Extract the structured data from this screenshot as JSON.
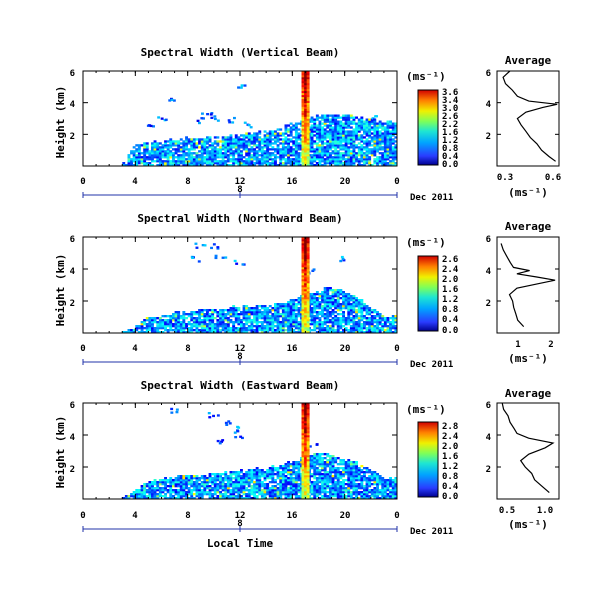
{
  "figure": {
    "xlabel": "Local Time"
  },
  "chart_data": [
    {
      "type": "heatmap",
      "title": "Spectral Width (Vertical Beam)",
      "ylabel": "Height (km)",
      "x_ticks": [
        "0",
        "4",
        "8",
        "12",
        "16",
        "20",
        "0"
      ],
      "y_ticks": [
        "6",
        "4",
        "2"
      ],
      "date_tick": "8",
      "date_label": "Dec 2011",
      "colorbar": {
        "unit": "(ms⁻¹)",
        "ticks": [
          "3.6",
          "3.4",
          "3.0",
          "2.6",
          "2.2",
          "1.6",
          "1.2",
          "0.8",
          "0.4",
          "0.0"
        ]
      },
      "xlim": [
        0,
        24
      ],
      "ylim": [
        0,
        6
      ],
      "cloud_top_km": [
        0,
        0,
        0,
        0,
        1.3,
        1.4,
        1.5,
        1.6,
        1.7,
        1.7,
        1.8,
        1.8,
        1.9,
        2.0,
        2.1,
        2.3,
        2.6,
        2.9,
        3.1,
        3.2,
        3.2,
        3.0,
        2.9,
        2.8
      ],
      "scattered_cells": [
        [
          7,
          4.3
        ],
        [
          10,
          3.0
        ],
        [
          9.5,
          3.3
        ],
        [
          11.5,
          2.9
        ],
        [
          12.5,
          2.6
        ],
        [
          9,
          2.9
        ],
        [
          5,
          2.6
        ],
        [
          12,
          5.0
        ],
        [
          6,
          3.0
        ],
        [
          22.5,
          3.0
        ]
      ],
      "spike_hour": 17.0,
      "average": {
        "title": "Average",
        "xlabel": "(ms⁻¹)",
        "x_ticks": [
          "0.3",
          "0.6"
        ],
        "y_ticks": [
          "6",
          "4",
          "2"
        ],
        "xlim": [
          0.3,
          0.6
        ],
        "ylim": [
          0,
          6
        ],
        "height_km": [
          0.3,
          0.6,
          1.0,
          1.4,
          1.8,
          2.2,
          2.6,
          3.0,
          3.4,
          3.7,
          3.9,
          4.1,
          4.4,
          4.8,
          5.2,
          5.6,
          6.0
        ],
        "width": [
          0.58,
          0.55,
          0.52,
          0.49,
          0.46,
          0.44,
          0.42,
          0.4,
          0.44,
          0.52,
          0.59,
          0.45,
          0.4,
          0.37,
          0.34,
          0.33,
          0.36
        ]
      }
    },
    {
      "type": "heatmap",
      "title": "Spectral Width (Northward Beam)",
      "ylabel": "Height (km)",
      "x_ticks": [
        "0",
        "4",
        "8",
        "12",
        "16",
        "20",
        "0"
      ],
      "y_ticks": [
        "6",
        "4",
        "2"
      ],
      "date_tick": "8",
      "date_label": "Dec 2011",
      "colorbar": {
        "unit": "(ms⁻¹)",
        "ticks": [
          "2.6",
          "2.4",
          "2.0",
          "1.6",
          "1.2",
          "0.8",
          "0.4",
          "0.0"
        ]
      },
      "xlim": [
        0,
        24
      ],
      "ylim": [
        0,
        6
      ],
      "cloud_top_km": [
        0,
        0,
        0,
        0,
        0.3,
        0.9,
        1.0,
        1.2,
        1.3,
        1.4,
        1.4,
        1.5,
        1.6,
        1.6,
        1.7,
        1.8,
        2.0,
        2.4,
        2.6,
        2.8,
        2.5,
        2.2,
        1.5,
        1.0
      ],
      "scattered_cells": [
        [
          9,
          5.5
        ],
        [
          10,
          5.4
        ],
        [
          10.5,
          4.8
        ],
        [
          8.5,
          4.6
        ],
        [
          12,
          4.4
        ],
        [
          17.5,
          3.9
        ],
        [
          20,
          4.6
        ]
      ],
      "spike_hour": 17.0,
      "average": {
        "title": "Average",
        "xlabel": "(ms⁻¹)",
        "x_ticks": [
          "1",
          "2"
        ],
        "y_ticks": [
          "6",
          "4",
          "2"
        ],
        "xlim": [
          0.3,
          2.2
        ],
        "ylim": [
          0,
          6
        ],
        "height_km": [
          0.4,
          0.8,
          1.2,
          1.6,
          2.0,
          2.4,
          2.8,
          3.1,
          3.3,
          3.5,
          3.7,
          3.9,
          4.1,
          4.4,
          4.8,
          5.2,
          5.6
        ],
        "width": [
          1.1,
          0.95,
          0.85,
          0.8,
          0.75,
          0.7,
          0.9,
          1.6,
          2.1,
          1.5,
          0.9,
          1.3,
          0.8,
          0.7,
          0.6,
          0.5,
          0.45
        ]
      }
    },
    {
      "type": "heatmap",
      "title": "Spectral Width (Eastward Beam)",
      "ylabel": "Height (km)",
      "x_ticks": [
        "0",
        "4",
        "8",
        "12",
        "16",
        "20",
        "0"
      ],
      "y_ticks": [
        "6",
        "4",
        "2"
      ],
      "date_tick": "8",
      "date_label": "Dec 2011",
      "colorbar": {
        "unit": "(ms⁻¹)",
        "ticks": [
          "2.8",
          "2.4",
          "2.0",
          "1.6",
          "1.2",
          "0.8",
          "0.4",
          "0.0"
        ]
      },
      "xlim": [
        0,
        24
      ],
      "ylim": [
        0,
        6
      ],
      "cloud_top_km": [
        0,
        0,
        0,
        0,
        0.5,
        1.0,
        1.2,
        1.3,
        1.4,
        1.4,
        1.5,
        1.6,
        1.7,
        1.8,
        1.9,
        2.0,
        2.3,
        2.6,
        2.9,
        2.7,
        2.4,
        2.2,
        1.8,
        1.2
      ],
      "scattered_cells": [
        [
          7,
          5.5
        ],
        [
          10,
          5.2
        ],
        [
          11,
          4.8
        ],
        [
          11.5,
          4.4
        ],
        [
          12,
          4.0
        ],
        [
          10.5,
          3.6
        ],
        [
          17.5,
          3.4
        ]
      ],
      "spike_hour": 17.0,
      "average": {
        "title": "Average",
        "xlabel": "(ms⁻¹)",
        "x_ticks": [
          "0.5",
          "1.0"
        ],
        "y_ticks": [
          "6",
          "4",
          "2"
        ],
        "xlim": [
          0.3,
          1.2
        ],
        "ylim": [
          0,
          6
        ],
        "height_km": [
          0.4,
          0.8,
          1.2,
          1.6,
          2.0,
          2.4,
          2.8,
          3.2,
          3.5,
          3.8,
          4.1,
          4.4,
          4.8,
          5.2,
          5.6,
          6.0
        ],
        "width": [
          1.05,
          0.95,
          0.85,
          0.8,
          0.7,
          0.65,
          0.75,
          1.0,
          1.1,
          0.75,
          0.6,
          0.55,
          0.5,
          0.45,
          0.4,
          0.38
        ]
      }
    }
  ]
}
